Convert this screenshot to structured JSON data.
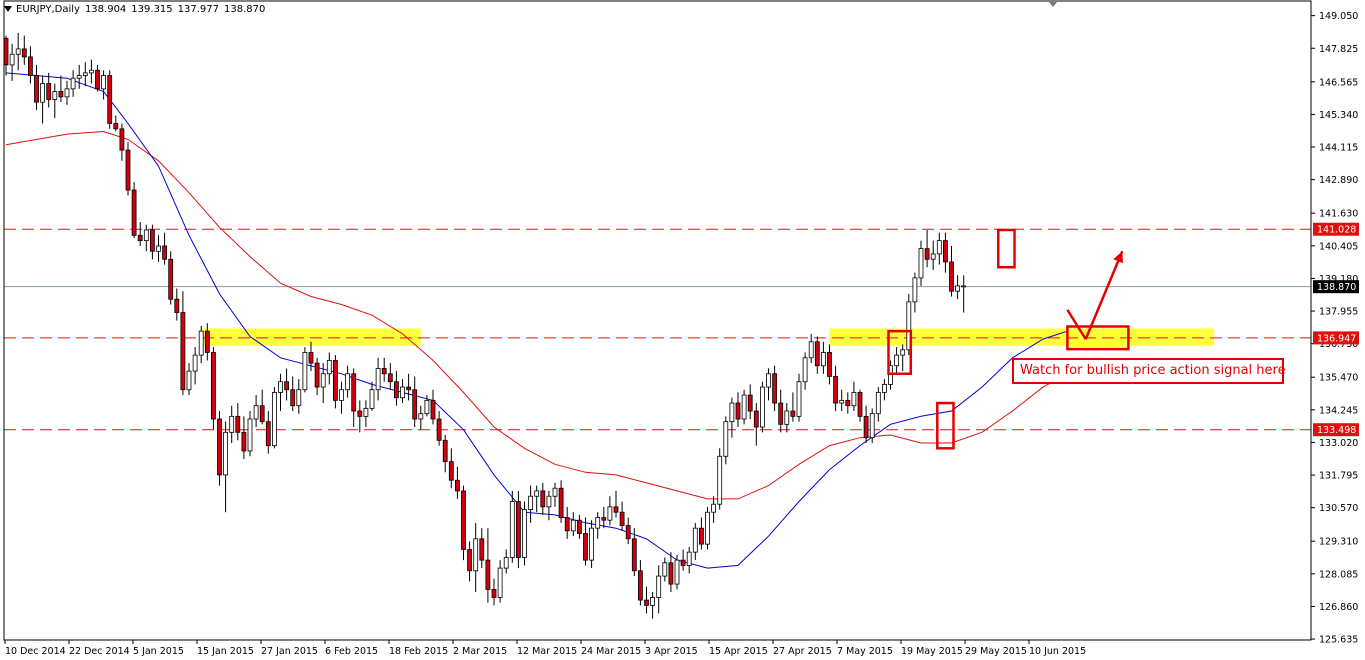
{
  "header": {
    "symbol": "EURJPY,Daily",
    "open": "138.904",
    "high": "139.315",
    "low": "137.977",
    "close": "138.870"
  },
  "annotation": {
    "text": "Watch for bullish price action signal here"
  },
  "colors": {
    "bull_candle": "#ffffff",
    "bear_candle": "#d0000f",
    "wick": "#000000",
    "ma_fast": "#0000cc",
    "ma_slow": "#e01010",
    "level_line": "#e01010",
    "zone_fill": "#ffff33",
    "current_price_line": "#8a9aaa",
    "annotation": "#e50000"
  },
  "chart_data": {
    "type": "candlestick",
    "title": "EURJPY,Daily",
    "ylim": [
      125.6,
      149.6
    ],
    "y_ticks": [
      "149.050",
      "147.825",
      "146.565",
      "145.340",
      "144.115",
      "142.890",
      "141.630",
      "140.405",
      "139.180",
      "137.955",
      "136.730",
      "135.470",
      "134.245",
      "133.020",
      "131.795",
      "130.570",
      "129.310",
      "128.085",
      "126.860",
      "125.635"
    ],
    "x_ticks": [
      "10 Dec 2014",
      "22 Dec 2014",
      "5 Jan 2015",
      "15 Jan 2015",
      "27 Jan 2015",
      "6 Feb 2015",
      "18 Feb 2015",
      "2 Mar 2015",
      "12 Mar 2015",
      "24 Mar 2015",
      "3 Apr 2015",
      "15 Apr 2015",
      "27 Apr 2015",
      "7 May 2015",
      "19 May 2015",
      "29 May 2015",
      "10 Jun 2015"
    ],
    "current_price": 138.87,
    "current_price_label": "138.870",
    "levels": [
      {
        "value": 141.028,
        "label": "141.028"
      },
      {
        "value": 136.947,
        "label": "136.947"
      },
      {
        "value": 133.498,
        "label": "133.498"
      }
    ],
    "zones": [
      {
        "from_day": 32,
        "to_day": 68,
        "low": 136.65,
        "high": 137.3
      },
      {
        "from_day": 135,
        "to_day": 198,
        "low": 136.65,
        "high": 137.3
      },
      {
        "from_day": 174,
        "to_day": 184,
        "low": 136.6,
        "high": 137.3
      }
    ],
    "highlight_boxes": [
      {
        "from_day": 145,
        "to_day": 148,
        "low": 135.6,
        "high": 137.2
      },
      {
        "from_day": 153,
        "to_day": 155,
        "low": 132.8,
        "high": 134.5
      },
      {
        "from_day": 163,
        "to_day": 165,
        "low": 139.6,
        "high": 141.0
      }
    ],
    "arrows": [
      {
        "from_day": 174,
        "from_price": 138.0,
        "to_day": 177,
        "to_price": 136.9
      },
      {
        "from_day": 177,
        "from_price": 136.9,
        "to_day": 183,
        "to_price": 140.2
      }
    ],
    "candles": [
      [
        148.2,
        148.3,
        146.8,
        147.2
      ],
      [
        147.2,
        148.0,
        146.6,
        147.6
      ],
      [
        147.6,
        148.4,
        147.0,
        147.8
      ],
      [
        147.8,
        148.3,
        147.2,
        147.5
      ],
      [
        147.5,
        147.9,
        146.5,
        146.8
      ],
      [
        146.8,
        147.2,
        145.5,
        145.8
      ],
      [
        145.8,
        146.8,
        145.0,
        146.5
      ],
      [
        146.5,
        146.9,
        145.6,
        145.9
      ],
      [
        145.9,
        146.5,
        145.2,
        146.2
      ],
      [
        146.2,
        146.8,
        145.8,
        146.0
      ],
      [
        146.0,
        146.6,
        145.7,
        146.3
      ],
      [
        146.3,
        147.0,
        146.0,
        146.7
      ],
      [
        146.7,
        147.2,
        146.3,
        146.8
      ],
      [
        146.8,
        147.3,
        146.4,
        146.9
      ],
      [
        146.9,
        147.4,
        146.5,
        147.0
      ],
      [
        147.0,
        147.2,
        146.2,
        146.3
      ],
      [
        146.3,
        147.0,
        145.9,
        146.8
      ],
      [
        146.8,
        147.0,
        144.8,
        145.0
      ],
      [
        145.0,
        145.3,
        144.7,
        144.8
      ],
      [
        144.8,
        145.0,
        143.6,
        144.0
      ],
      [
        144.0,
        144.3,
        142.3,
        142.5
      ],
      [
        142.5,
        142.8,
        140.7,
        140.8
      ],
      [
        140.8,
        141.3,
        140.4,
        140.6
      ],
      [
        140.6,
        141.2,
        140.2,
        141.0
      ],
      [
        141.0,
        141.2,
        139.9,
        140.2
      ],
      [
        140.2,
        140.8,
        139.8,
        140.4
      ],
      [
        140.4,
        140.9,
        139.7,
        139.9
      ],
      [
        139.9,
        140.2,
        138.2,
        138.4
      ],
      [
        138.4,
        138.8,
        137.6,
        137.9
      ],
      [
        137.9,
        138.7,
        134.8,
        135.0
      ],
      [
        135.0,
        136.0,
        134.8,
        135.7
      ],
      [
        135.7,
        136.6,
        135.2,
        136.3
      ],
      [
        136.3,
        137.4,
        136.0,
        137.2
      ],
      [
        137.2,
        137.5,
        136.1,
        136.4
      ],
      [
        136.4,
        136.6,
        133.5,
        133.9
      ],
      [
        133.9,
        134.2,
        131.4,
        131.8
      ],
      [
        131.8,
        133.8,
        130.4,
        133.4
      ],
      [
        133.4,
        134.4,
        133.0,
        134.0
      ],
      [
        134.0,
        134.5,
        133.1,
        133.4
      ],
      [
        133.4,
        134.0,
        132.4,
        132.7
      ],
      [
        132.7,
        134.2,
        132.5,
        133.9
      ],
      [
        133.9,
        134.8,
        133.6,
        134.4
      ],
      [
        134.4,
        135.0,
        133.7,
        133.8
      ],
      [
        133.8,
        134.2,
        132.6,
        132.9
      ],
      [
        132.9,
        135.1,
        132.8,
        134.9
      ],
      [
        134.9,
        135.6,
        134.2,
        135.3
      ],
      [
        135.3,
        135.8,
        134.6,
        135.0
      ],
      [
        135.0,
        135.5,
        134.2,
        134.4
      ],
      [
        134.4,
        135.4,
        134.1,
        135.0
      ],
      [
        135.0,
        136.6,
        134.9,
        136.4
      ],
      [
        136.4,
        136.8,
        135.7,
        136.0
      ],
      [
        136.0,
        136.2,
        134.8,
        135.1
      ],
      [
        135.1,
        136.0,
        134.5,
        135.6
      ],
      [
        135.6,
        136.4,
        135.2,
        136.1
      ],
      [
        136.1,
        136.3,
        134.3,
        134.6
      ],
      [
        134.6,
        135.3,
        134.1,
        135.0
      ],
      [
        135.0,
        135.9,
        134.7,
        135.6
      ],
      [
        135.6,
        135.8,
        133.6,
        134.2
      ],
      [
        134.2,
        134.6,
        133.4,
        134.0
      ],
      [
        134.0,
        134.6,
        133.6,
        134.3
      ],
      [
        134.3,
        135.3,
        134.2,
        135.0
      ],
      [
        135.0,
        136.2,
        134.6,
        135.8
      ],
      [
        135.8,
        136.2,
        135.3,
        135.6
      ],
      [
        135.6,
        136.0,
        135.0,
        135.3
      ],
      [
        135.3,
        135.7,
        134.4,
        134.7
      ],
      [
        134.7,
        135.4,
        134.5,
        135.1
      ],
      [
        135.1,
        135.6,
        134.6,
        135.0
      ],
      [
        135.0,
        135.5,
        133.6,
        133.9
      ],
      [
        133.9,
        134.4,
        133.5,
        134.1
      ],
      [
        134.1,
        134.8,
        134.0,
        134.6
      ],
      [
        134.6,
        135.0,
        133.7,
        133.9
      ],
      [
        133.9,
        134.2,
        132.9,
        133.1
      ],
      [
        133.1,
        133.3,
        131.9,
        132.3
      ],
      [
        132.3,
        132.8,
        131.3,
        131.6
      ],
      [
        131.6,
        132.1,
        130.9,
        131.2
      ],
      [
        131.2,
        131.4,
        128.6,
        129.0
      ],
      [
        129.0,
        129.3,
        127.8,
        128.2
      ],
      [
        128.2,
        130.0,
        127.4,
        129.4
      ],
      [
        129.4,
        129.8,
        128.3,
        128.6
      ],
      [
        128.6,
        129.8,
        127.0,
        127.5
      ],
      [
        127.5,
        127.9,
        126.9,
        127.2
      ],
      [
        127.2,
        128.6,
        127.0,
        128.3
      ],
      [
        128.3,
        129.0,
        128.1,
        128.7
      ],
      [
        128.7,
        131.2,
        128.5,
        130.8
      ],
      [
        130.8,
        131.2,
        128.3,
        128.7
      ],
      [
        128.7,
        130.8,
        128.4,
        130.5
      ],
      [
        130.5,
        131.4,
        130.0,
        131.0
      ],
      [
        131.0,
        131.4,
        130.4,
        131.2
      ],
      [
        131.2,
        131.5,
        130.3,
        130.6
      ],
      [
        130.6,
        131.2,
        130.1,
        131.0
      ],
      [
        131.0,
        131.5,
        130.6,
        131.3
      ],
      [
        131.3,
        131.6,
        130.0,
        130.2
      ],
      [
        130.2,
        130.6,
        129.4,
        129.7
      ],
      [
        129.7,
        130.4,
        129.5,
        130.1
      ],
      [
        130.1,
        130.3,
        129.4,
        129.6
      ],
      [
        129.6,
        130.2,
        128.4,
        128.6
      ],
      [
        128.6,
        130.1,
        128.3,
        129.8
      ],
      [
        129.8,
        130.4,
        129.4,
        130.2
      ],
      [
        130.2,
        130.6,
        129.8,
        130.1
      ],
      [
        130.1,
        131.0,
        129.9,
        130.6
      ],
      [
        130.6,
        131.2,
        130.2,
        130.4
      ],
      [
        130.4,
        130.8,
        129.7,
        129.9
      ],
      [
        129.9,
        130.2,
        129.2,
        129.4
      ],
      [
        129.4,
        129.8,
        128.0,
        128.2
      ],
      [
        128.2,
        128.6,
        126.9,
        127.1
      ],
      [
        127.1,
        127.6,
        126.6,
        126.9
      ],
      [
        126.9,
        127.4,
        126.4,
        127.2
      ],
      [
        127.2,
        128.4,
        126.6,
        128.0
      ],
      [
        128.0,
        128.7,
        127.8,
        128.5
      ],
      [
        128.5,
        128.9,
        127.4,
        127.7
      ],
      [
        127.7,
        128.8,
        127.5,
        128.6
      ],
      [
        128.6,
        129.0,
        128.2,
        128.4
      ],
      [
        128.4,
        129.1,
        128.1,
        128.9
      ],
      [
        128.9,
        130.0,
        128.6,
        129.8
      ],
      [
        129.8,
        130.2,
        129.0,
        129.2
      ],
      [
        129.2,
        130.6,
        129.0,
        130.4
      ],
      [
        130.4,
        131.0,
        130.0,
        130.7
      ],
      [
        130.7,
        132.8,
        130.5,
        132.5
      ],
      [
        132.5,
        134.0,
        132.2,
        133.8
      ],
      [
        133.8,
        134.7,
        133.2,
        134.5
      ],
      [
        134.5,
        134.9,
        133.6,
        133.9
      ],
      [
        133.9,
        135.0,
        133.7,
        134.8
      ],
      [
        134.8,
        135.2,
        133.9,
        134.2
      ],
      [
        134.2,
        134.5,
        132.9,
        133.6
      ],
      [
        133.6,
        135.3,
        133.4,
        135.1
      ],
      [
        135.1,
        135.8,
        134.6,
        135.6
      ],
      [
        135.6,
        135.9,
        134.2,
        134.5
      ],
      [
        134.5,
        135.0,
        133.4,
        133.7
      ],
      [
        133.7,
        134.5,
        133.4,
        134.2
      ],
      [
        134.2,
        134.9,
        133.8,
        134.0
      ],
      [
        134.0,
        135.6,
        133.8,
        135.3
      ],
      [
        135.3,
        136.4,
        135.0,
        136.2
      ],
      [
        136.2,
        137.1,
        136.0,
        136.8
      ],
      [
        136.8,
        137.0,
        135.6,
        135.9
      ],
      [
        135.9,
        136.8,
        135.6,
        136.4
      ],
      [
        136.4,
        136.7,
        135.2,
        135.5
      ],
      [
        135.5,
        135.9,
        134.2,
        134.5
      ],
      [
        134.5,
        135.0,
        134.2,
        134.6
      ],
      [
        134.6,
        134.9,
        134.1,
        134.4
      ],
      [
        134.4,
        135.3,
        134.2,
        134.9
      ],
      [
        134.9,
        135.0,
        133.8,
        134.0
      ],
      [
        134.0,
        134.4,
        133.0,
        133.2
      ],
      [
        133.2,
        134.3,
        133.0,
        134.1
      ],
      [
        134.1,
        135.1,
        133.8,
        134.9
      ],
      [
        134.9,
        135.4,
        134.6,
        135.2
      ],
      [
        135.2,
        136.1,
        135.0,
        135.9
      ],
      [
        135.9,
        136.6,
        135.6,
        136.3
      ],
      [
        136.3,
        136.7,
        135.7,
        136.5
      ],
      [
        136.5,
        138.6,
        136.3,
        138.3
      ],
      [
        138.3,
        139.4,
        137.9,
        139.2
      ],
      [
        139.2,
        140.6,
        138.9,
        140.3
      ],
      [
        140.3,
        141.0,
        139.6,
        139.9
      ],
      [
        139.9,
        140.6,
        139.5,
        140.1
      ],
      [
        140.1,
        140.9,
        139.7,
        140.6
      ],
      [
        140.6,
        140.9,
        139.4,
        139.8
      ],
      [
        139.8,
        140.4,
        138.5,
        138.7
      ],
      [
        138.7,
        139.3,
        138.4,
        138.9
      ],
      [
        138.9,
        139.3,
        137.9,
        138.9
      ]
    ],
    "ma_fast": [
      [
        0,
        146.9
      ],
      [
        10,
        146.7
      ],
      [
        16,
        146.2
      ],
      [
        20,
        145.0
      ],
      [
        25,
        143.4
      ],
      [
        30,
        140.8
      ],
      [
        35,
        138.6
      ],
      [
        40,
        137.0
      ],
      [
        45,
        136.2
      ],
      [
        50,
        135.9
      ],
      [
        55,
        135.6
      ],
      [
        60,
        135.2
      ],
      [
        65,
        134.9
      ],
      [
        70,
        134.6
      ],
      [
        75,
        133.5
      ],
      [
        80,
        131.8
      ],
      [
        85,
        130.4
      ],
      [
        90,
        130.3
      ],
      [
        95,
        130.0
      ],
      [
        100,
        129.8
      ],
      [
        105,
        129.4
      ],
      [
        110,
        128.6
      ],
      [
        115,
        128.3
      ],
      [
        120,
        128.4
      ],
      [
        125,
        129.5
      ],
      [
        130,
        130.8
      ],
      [
        135,
        132.0
      ],
      [
        140,
        132.9
      ],
      [
        145,
        133.7
      ],
      [
        150,
        134.0
      ],
      [
        155,
        134.2
      ],
      [
        160,
        135.1
      ],
      [
        165,
        136.2
      ],
      [
        170,
        136.9
      ],
      [
        174,
        137.2
      ]
    ],
    "ma_slow": [
      [
        0,
        144.2
      ],
      [
        10,
        144.6
      ],
      [
        16,
        144.7
      ],
      [
        20,
        144.4
      ],
      [
        25,
        143.6
      ],
      [
        30,
        142.4
      ],
      [
        35,
        141.1
      ],
      [
        40,
        140.0
      ],
      [
        45,
        139.0
      ],
      [
        50,
        138.5
      ],
      [
        55,
        138.2
      ],
      [
        60,
        137.8
      ],
      [
        65,
        137.1
      ],
      [
        70,
        136.1
      ],
      [
        75,
        134.9
      ],
      [
        80,
        133.6
      ],
      [
        85,
        132.8
      ],
      [
        90,
        132.2
      ],
      [
        95,
        131.9
      ],
      [
        100,
        131.8
      ],
      [
        105,
        131.5
      ],
      [
        110,
        131.2
      ],
      [
        115,
        130.9
      ],
      [
        120,
        130.9
      ],
      [
        125,
        131.4
      ],
      [
        130,
        132.2
      ],
      [
        135,
        132.9
      ],
      [
        140,
        133.2
      ],
      [
        145,
        133.3
      ],
      [
        150,
        133.0
      ],
      [
        155,
        133.0
      ],
      [
        160,
        133.4
      ],
      [
        165,
        134.2
      ],
      [
        170,
        135.1
      ],
      [
        174,
        135.6
      ]
    ]
  }
}
